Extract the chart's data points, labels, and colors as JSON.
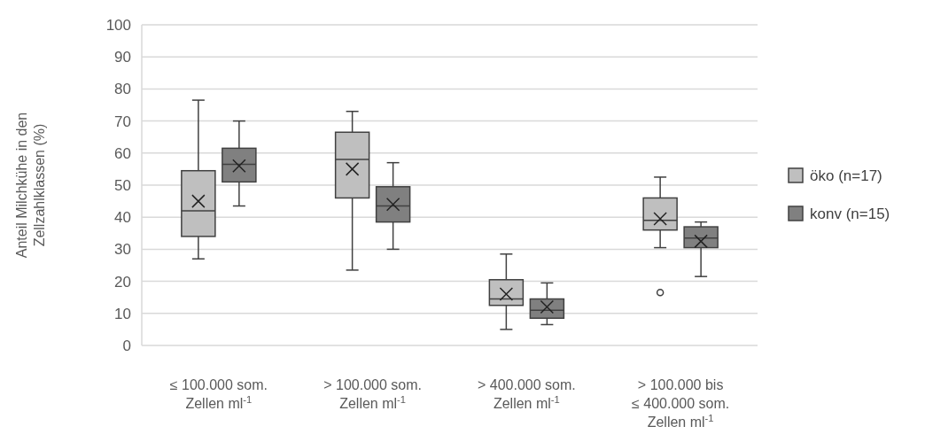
{
  "chart_data": {
    "type": "box",
    "ylabel": "Anteil Milchkühe in den\nZellzahlklassen (%)",
    "categories": [
      "≤ 100.000 som.\nZellen ml$^{-1}$",
      "> 100.000 som.\nZellen ml$^{-1}$",
      "> 400.000 som.\nZellen ml$^{-1}$",
      "> 100.000 bis\n≤ 400.000 som.\nZellen ml$^{-1}$"
    ],
    "ylim": [
      0,
      100
    ],
    "yticks": [
      0,
      10,
      20,
      30,
      40,
      50,
      60,
      70,
      80,
      90,
      100
    ],
    "grid": "y",
    "legend": "right",
    "series": [
      {
        "name": "öko (n=17)",
        "color": "#bfbfbf",
        "boxes": [
          {
            "low": 27,
            "q1": 34,
            "median": 42,
            "q3": 54.5,
            "high": 76.5,
            "mean": 45
          },
          {
            "low": 23.5,
            "q1": 46,
            "median": 58,
            "q3": 66.5,
            "high": 73,
            "mean": 55
          },
          {
            "low": 5,
            "q1": 12.5,
            "median": 14.5,
            "q3": 20.5,
            "high": 28.5,
            "mean": 16
          },
          {
            "low": 30.5,
            "q1": 36,
            "median": 39,
            "q3": 46,
            "high": 52.5,
            "mean": 39.5,
            "outliers": [
              16.5
            ]
          }
        ]
      },
      {
        "name": "konv (n=15)",
        "color": "#808080",
        "boxes": [
          {
            "low": 43.5,
            "q1": 51,
            "median": 56.5,
            "q3": 61.5,
            "high": 70,
            "mean": 56
          },
          {
            "low": 30,
            "q1": 38.5,
            "median": 43.5,
            "q3": 49.5,
            "high": 57,
            "mean": 44
          },
          {
            "low": 6.5,
            "q1": 8.5,
            "median": 11,
            "q3": 14.5,
            "high": 19.5,
            "mean": 12
          },
          {
            "low": 21.5,
            "q1": 30.5,
            "median": 33.5,
            "q3": 37,
            "high": 38.5,
            "mean": 32.5
          }
        ]
      }
    ]
  }
}
